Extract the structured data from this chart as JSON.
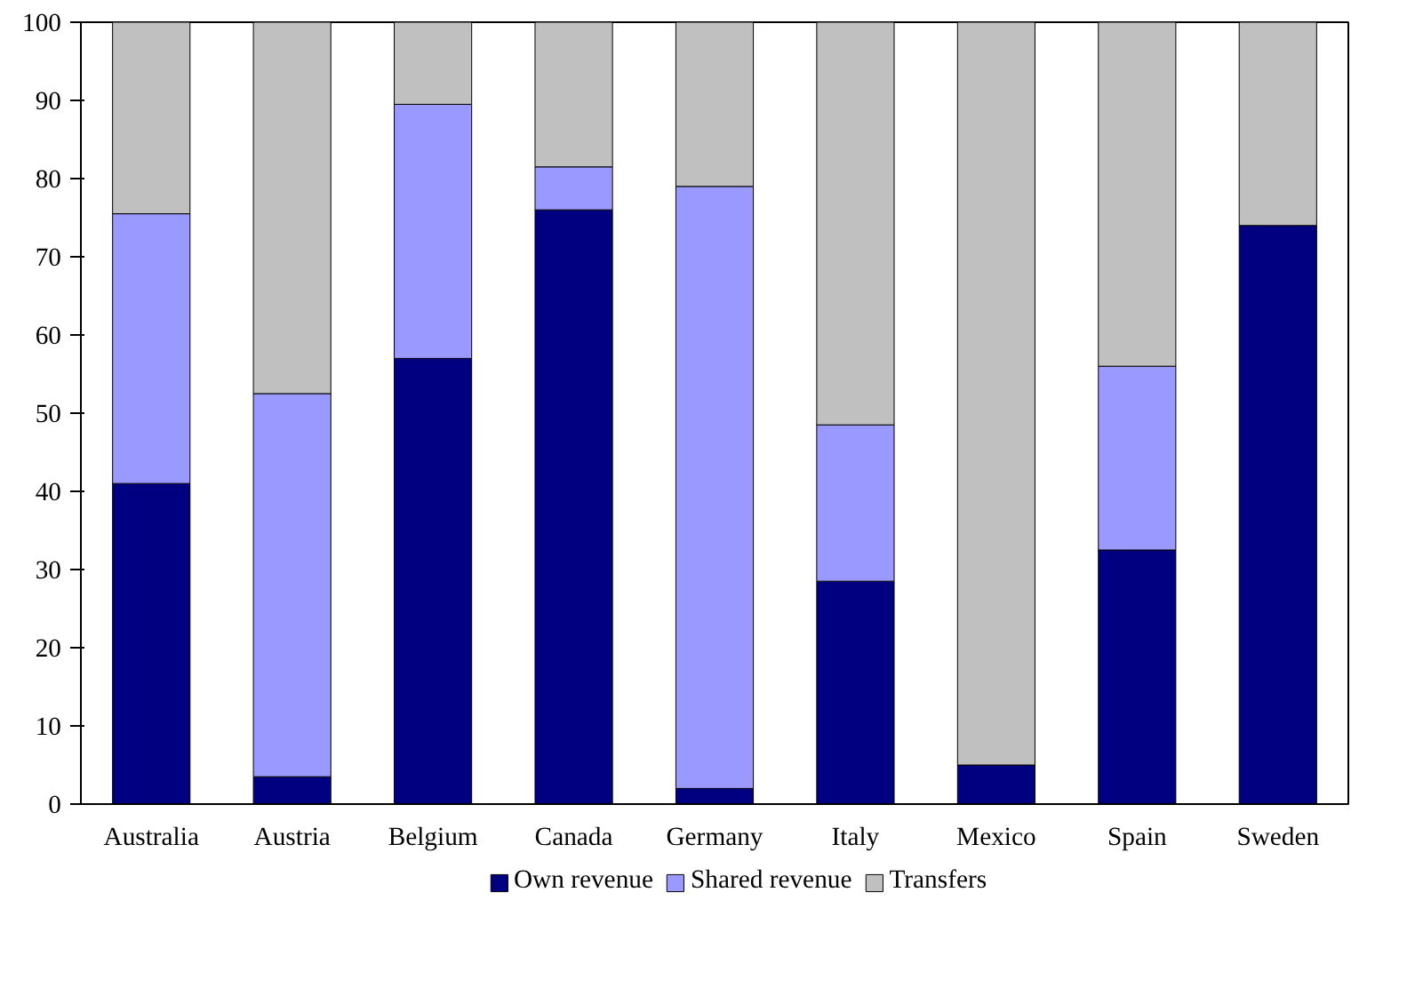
{
  "chart_data": {
    "type": "bar",
    "stacked": true,
    "categories": [
      "Australia",
      "Austria",
      "Belgium",
      "Canada",
      "Germany",
      "Italy",
      "Mexico",
      "Spain",
      "Sweden"
    ],
    "series": [
      {
        "name": "Own revenue",
        "color": "#000080",
        "values": [
          41,
          3.5,
          57,
          76,
          2,
          28.5,
          5,
          32.5,
          74
        ]
      },
      {
        "name": "Shared revenue",
        "color": "#9999ff",
        "values": [
          34.5,
          49,
          32.5,
          5.5,
          77,
          20,
          0,
          23.5,
          0
        ]
      },
      {
        "name": "Transfers",
        "color": "#c0c0c0",
        "values": [
          24.5,
          47.5,
          10.5,
          18.5,
          21,
          51.5,
          95,
          44,
          26
        ]
      }
    ],
    "ylim": [
      0,
      100
    ],
    "yticks": [
      0,
      10,
      20,
      30,
      40,
      50,
      60,
      70,
      80,
      90,
      100
    ],
    "grid": false,
    "legend": "bottom"
  }
}
